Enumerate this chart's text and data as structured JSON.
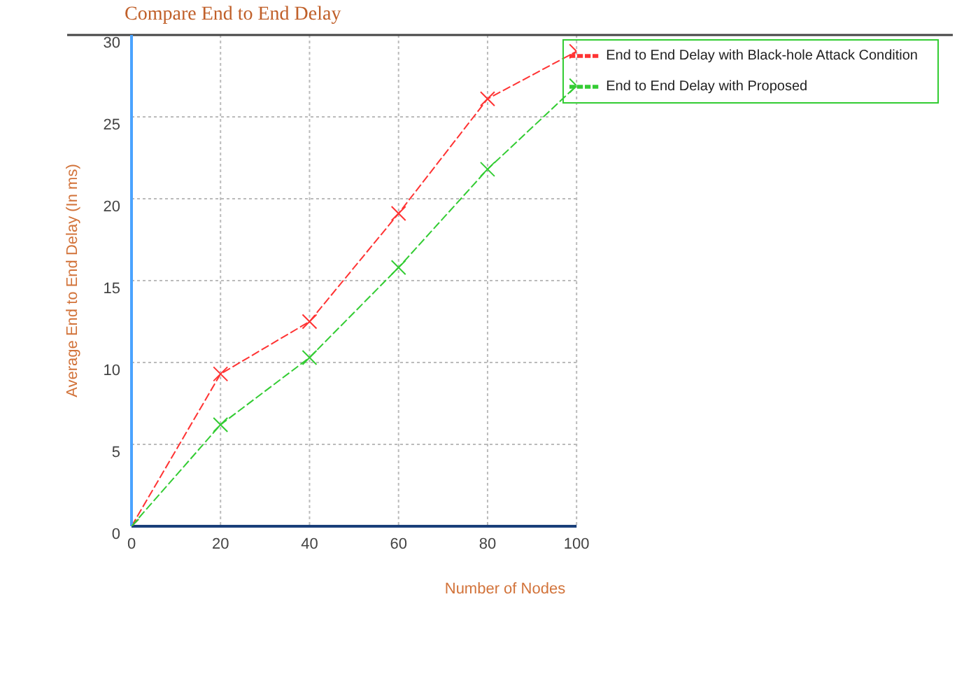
{
  "chart_data": {
    "type": "line",
    "title": "Compare End to End Delay",
    "xlabel": "Number of Nodes",
    "ylabel": "Average End to End Delay (In ms)",
    "x": [
      0,
      20,
      40,
      60,
      80,
      100
    ],
    "series": [
      {
        "name": "End to End Delay with  Black-hole Attack Condition",
        "color": "#ff3333",
        "values": [
          0,
          9.3,
          12.5,
          19.1,
          26.1,
          29
        ]
      },
      {
        "name": "End to End Delay with  Proposed",
        "color": "#33cc33",
        "values": [
          0,
          6.2,
          10.3,
          15.8,
          21.8,
          26.9
        ]
      }
    ],
    "xlim": [
      0,
      100
    ],
    "xticks": [
      0,
      20,
      40,
      60,
      80,
      100
    ],
    "ylim": [
      0,
      30
    ],
    "yticks": [
      0,
      5,
      10,
      15,
      20,
      25,
      30
    ],
    "grid": true,
    "legend": "top right",
    "marker": "cross",
    "line_style": "dashed"
  }
}
